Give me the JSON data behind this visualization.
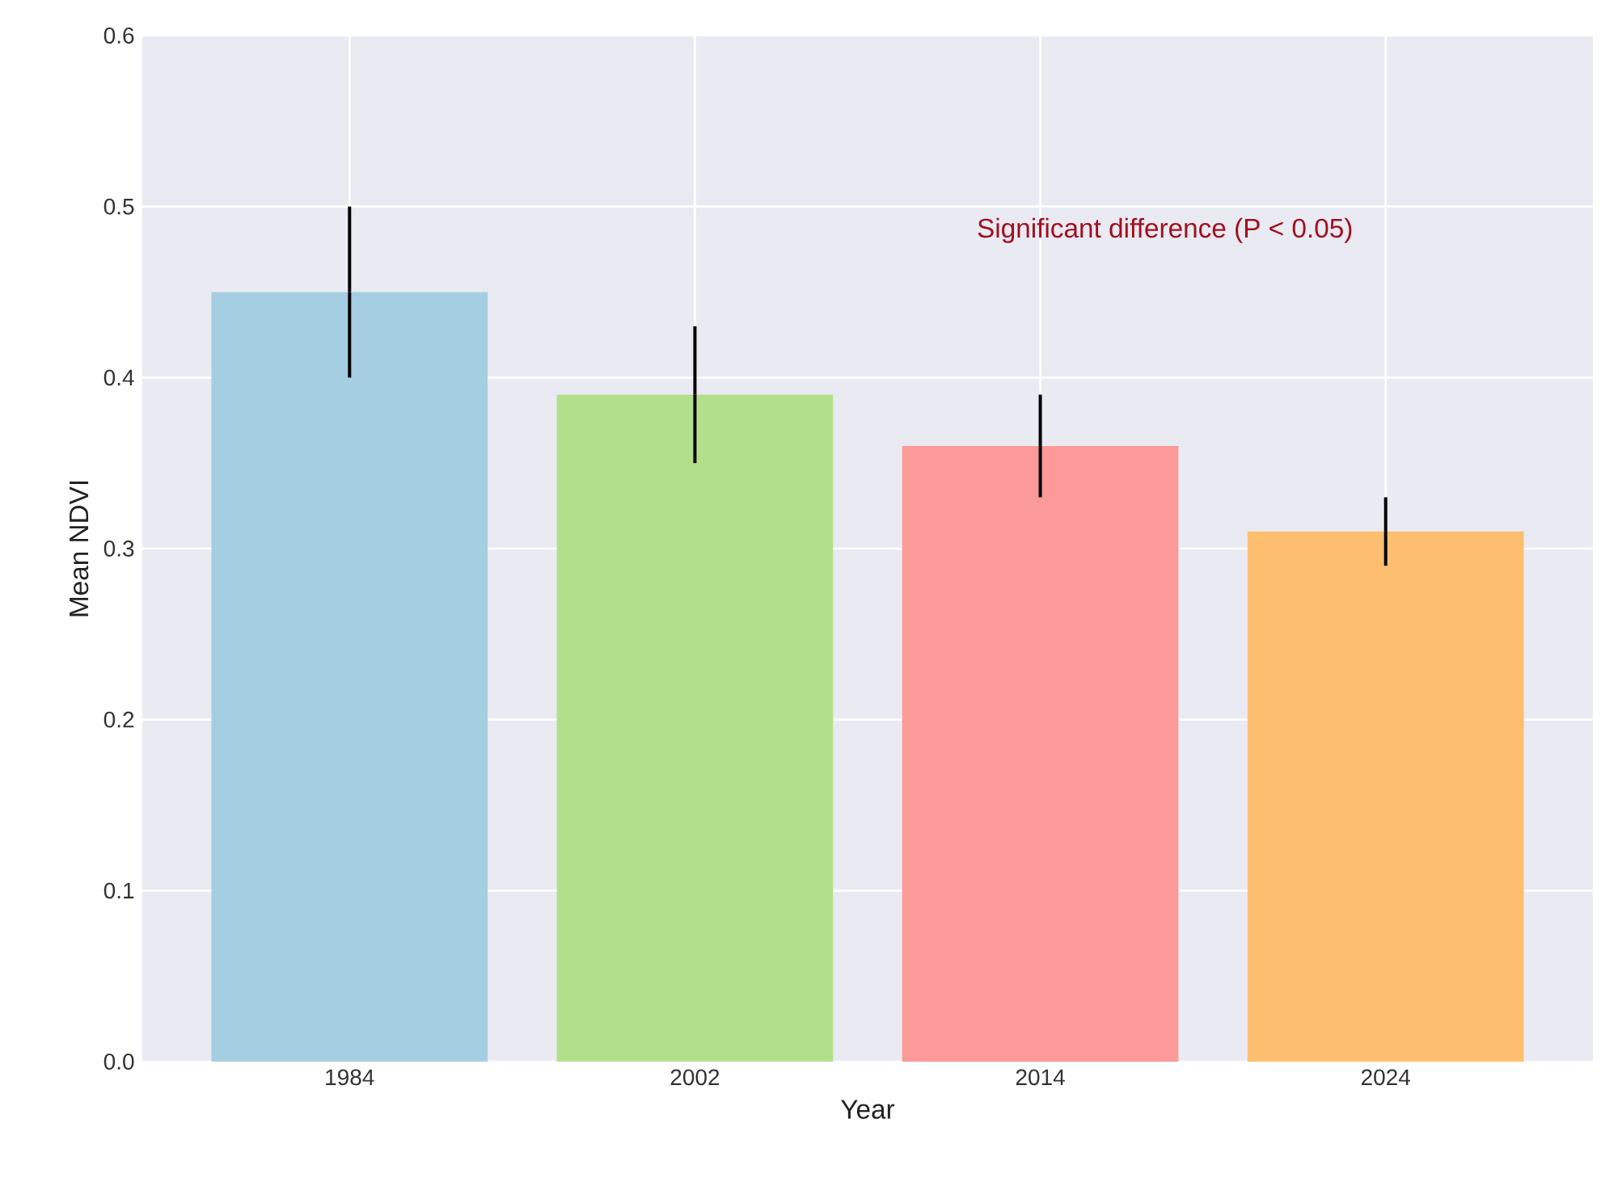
{
  "chart_data": {
    "type": "bar",
    "xlabel": "Year",
    "ylabel": "Mean NDVI",
    "categories": [
      "1984",
      "2002",
      "2014",
      "2024"
    ],
    "values": [
      0.45,
      0.39,
      0.36,
      0.31
    ],
    "errors": [
      0.05,
      0.04,
      0.03,
      0.02
    ],
    "colors": [
      "#a6cee3",
      "#b2df8a",
      "#fb9a99",
      "#fdbf6f"
    ],
    "ylim": [
      0,
      0.6
    ],
    "yticks": [
      {
        "value": 0,
        "label": "0.0"
      },
      0.1,
      0.2,
      0.3,
      0.4,
      0.5,
      0.6
    ],
    "grid": true,
    "annotations": [
      "Significant difference (P < 0.05)"
    ]
  }
}
